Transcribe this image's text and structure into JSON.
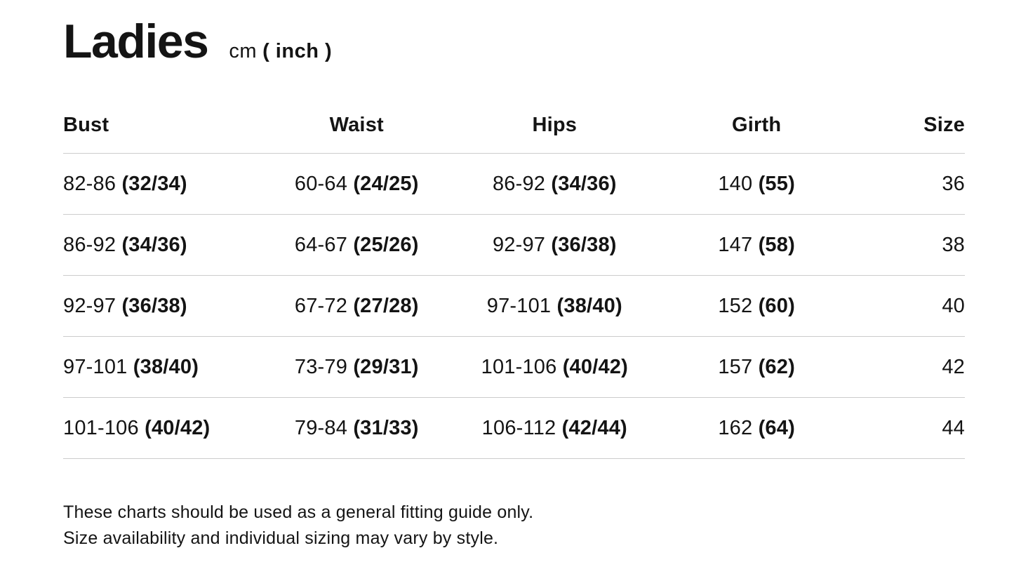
{
  "header": {
    "title": "Ladies",
    "unit_cm": "cm",
    "unit_inch": "( inch )"
  },
  "table": {
    "columns": [
      "Bust",
      "Waist",
      "Hips",
      "Girth",
      "Size"
    ],
    "rows": [
      {
        "bust": [
          "82-86",
          "(32/34)"
        ],
        "waist": [
          "60-64",
          "(24/25)"
        ],
        "hips": [
          "86-92",
          "(34/36)"
        ],
        "girth": [
          "140",
          "(55)"
        ],
        "size": "36"
      },
      {
        "bust": [
          "86-92",
          "(34/36)"
        ],
        "waist": [
          "64-67",
          "(25/26)"
        ],
        "hips": [
          "92-97",
          "(36/38)"
        ],
        "girth": [
          "147",
          "(58)"
        ],
        "size": "38"
      },
      {
        "bust": [
          "92-97",
          "(36/38)"
        ],
        "waist": [
          "67-72",
          "(27/28)"
        ],
        "hips": [
          "97-101",
          "(38/40)"
        ],
        "girth": [
          "152",
          "(60)"
        ],
        "size": "40"
      },
      {
        "bust": [
          "97-101",
          "(38/40)"
        ],
        "waist": [
          "73-79",
          "(29/31)"
        ],
        "hips": [
          "101-106",
          "(40/42)"
        ],
        "girth": [
          "157",
          "(62)"
        ],
        "size": "42"
      },
      {
        "bust": [
          "101-106",
          "(40/42)"
        ],
        "waist": [
          "79-84",
          "(31/33)"
        ],
        "hips": [
          "106-112",
          "(42/44)"
        ],
        "girth": [
          "162",
          "(64)"
        ],
        "size": "44"
      }
    ]
  },
  "footer": {
    "line1": "These charts should be used as a general fitting guide only.",
    "line2": "Size availability and individual sizing may vary by style."
  },
  "colors": {
    "text": "#141414",
    "divider": "#cccccc",
    "background": "#ffffff"
  }
}
